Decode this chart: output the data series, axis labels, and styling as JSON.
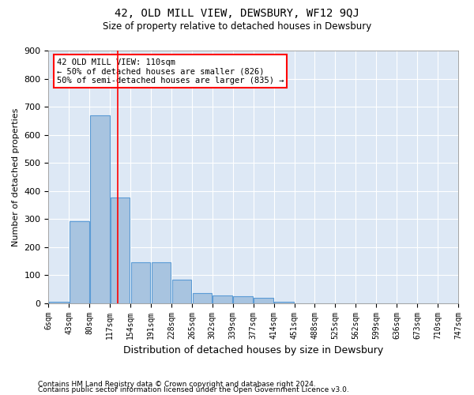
{
  "title": "42, OLD MILL VIEW, DEWSBURY, WF12 9QJ",
  "subtitle": "Size of property relative to detached houses in Dewsbury",
  "xlabel": "Distribution of detached houses by size in Dewsbury",
  "ylabel": "Number of detached properties",
  "bar_color": "#a8c4e0",
  "bar_edge_color": "#5b9bd5",
  "background_color": "#dde8f5",
  "grid_color": "#ffffff",
  "bin_labels": [
    "6sqm",
    "43sqm",
    "80sqm",
    "117sqm",
    "154sqm",
    "191sqm",
    "228sqm",
    "265sqm",
    "302sqm",
    "339sqm",
    "377sqm",
    "414sqm",
    "451sqm",
    "488sqm",
    "525sqm",
    "562sqm",
    "599sqm",
    "636sqm",
    "673sqm",
    "710sqm",
    "747sqm"
  ],
  "bar_heights": [
    5,
    292,
    668,
    375,
    145,
    145,
    83,
    35,
    28,
    25,
    20,
    5,
    0,
    0,
    0,
    0,
    0,
    0,
    0,
    0
  ],
  "property_label": "42 OLD MILL VIEW: 110sqm",
  "arrow_left_text": "← 50% of detached houses are smaller (826)",
  "arrow_right_text": "50% of semi-detached houses are larger (835) →",
  "vline_pos": 2.89,
  "footnote1": "Contains HM Land Registry data © Crown copyright and database right 2024.",
  "footnote2": "Contains public sector information licensed under the Open Government Licence v3.0.",
  "ylim": [
    0,
    900
  ],
  "yticks": [
    0,
    100,
    200,
    300,
    400,
    500,
    600,
    700,
    800,
    900
  ]
}
